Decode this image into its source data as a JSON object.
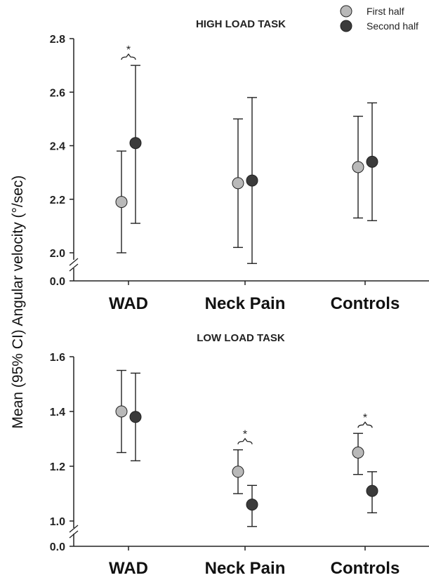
{
  "y_axis_title": "Mean (95% CI) Angular velocity (°/sec)",
  "legend": [
    {
      "label": "First half",
      "color": "#b9b9b9"
    },
    {
      "label": "Second half",
      "color": "#3b3b3b"
    }
  ],
  "chart_data": [
    {
      "type": "scatter",
      "title": "HIGH LOAD TASK",
      "categories": [
        "WAD",
        "Neck Pain",
        "Controls"
      ],
      "ylim": [
        2.0,
        2.8
      ],
      "yticks": [
        "0.0",
        "2.0",
        "2.2",
        "2.4",
        "2.6",
        "2.8"
      ],
      "axis_break": true,
      "series": [
        {
          "name": "First half",
          "values": [
            2.19,
            2.26,
            2.32
          ],
          "ci_low": [
            2.0,
            2.02,
            2.13
          ],
          "ci_high": [
            2.38,
            2.5,
            2.51
          ]
        },
        {
          "name": "Second half",
          "values": [
            2.41,
            2.27,
            2.34
          ],
          "ci_low": [
            2.11,
            1.96,
            2.12
          ],
          "ci_high": [
            2.7,
            2.58,
            2.56
          ]
        }
      ],
      "annotations": [
        {
          "category": "WAD",
          "text": "*"
        }
      ]
    },
    {
      "type": "scatter",
      "title": "LOW LOAD TASK",
      "categories": [
        "WAD",
        "Neck Pain",
        "Controls"
      ],
      "ylim": [
        1.0,
        1.6
      ],
      "yticks": [
        "0.0",
        "1.0",
        "1.2",
        "1.4",
        "1.6"
      ],
      "axis_break": true,
      "series": [
        {
          "name": "First half",
          "values": [
            1.4,
            1.18,
            1.25
          ],
          "ci_low": [
            1.25,
            1.1,
            1.17
          ],
          "ci_high": [
            1.55,
            1.26,
            1.32
          ]
        },
        {
          "name": "Second half",
          "values": [
            1.38,
            1.06,
            1.11
          ],
          "ci_low": [
            1.22,
            0.98,
            1.03
          ],
          "ci_high": [
            1.54,
            1.13,
            1.18
          ]
        }
      ],
      "annotations": [
        {
          "category": "Neck Pain",
          "text": "*"
        },
        {
          "category": "Controls",
          "text": "*"
        }
      ]
    }
  ]
}
